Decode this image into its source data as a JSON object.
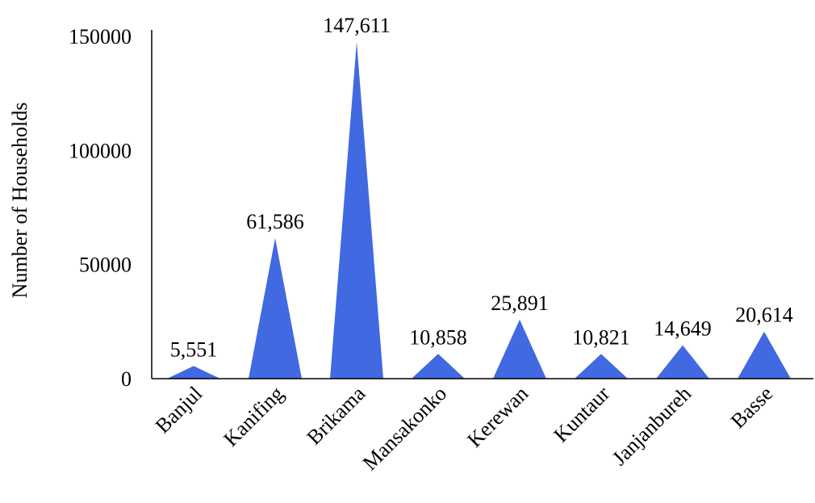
{
  "chart_data": {
    "type": "area",
    "shape": "triangle-peaks",
    "title": "",
    "xlabel": "",
    "ylabel": "Number of Households",
    "ylim": [
      0,
      150000
    ],
    "yticks": [
      0,
      50000,
      100000,
      150000
    ],
    "ytick_labels": [
      "0",
      "50000",
      "100000",
      "150000"
    ],
    "categories": [
      "Banjul",
      "Kanifing",
      "Brikama",
      "Mansakonko",
      "Kerewan",
      "Kuntaur",
      "Janjanbureh",
      "Basse"
    ],
    "values": [
      5551,
      61586,
      147611,
      10858,
      25891,
      10821,
      14649,
      20614
    ],
    "data_labels": [
      "5,551",
      "61,586",
      "147,611",
      "10,858",
      "25,891",
      "10,821",
      "14,649",
      "20,614"
    ],
    "color": "#4169e1",
    "grid": false,
    "legend": "none"
  }
}
